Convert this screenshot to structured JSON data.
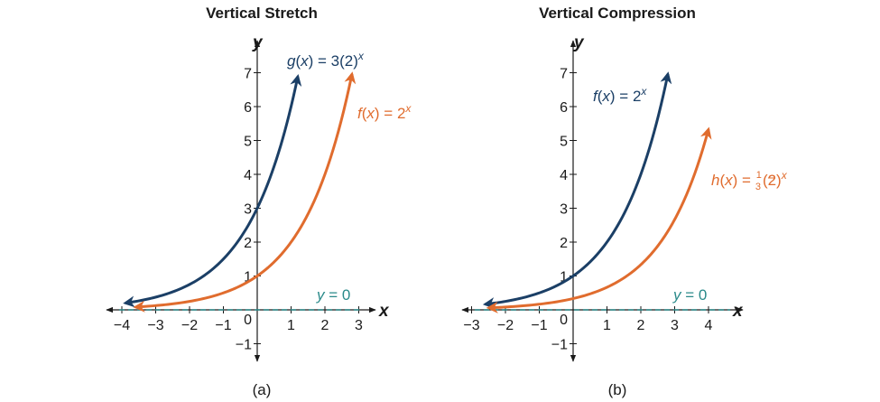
{
  "colors": {
    "blue": "#1b3f66",
    "orange": "#e06c2e",
    "teal": "#2a8a8a",
    "axis": "#1a1a1a"
  },
  "chart_data": [
    {
      "type": "line",
      "panel_label": "(a)",
      "title": "Vertical Stretch",
      "xlabel": "x",
      "ylabel": "y",
      "xlim": [
        -4,
        3
      ],
      "ylim": [
        -1,
        7
      ],
      "x_ticks": [
        "−4",
        "−3",
        "−2",
        "−1",
        "1",
        "2",
        "3"
      ],
      "y_ticks": [
        "−1",
        "1",
        "2",
        "3",
        "4",
        "5",
        "6",
        "7"
      ],
      "origin_label": "0",
      "series": [
        {
          "name": "g(x) = 3(2)^x",
          "label_parts": [
            "g",
            "(",
            "x",
            ") = 3(2)",
            "x"
          ],
          "coef": 3,
          "base": 2,
          "x_range": [
            -3.9,
            1.2
          ],
          "color": "#1b3f66"
        },
        {
          "name": "f(x) = 2^x",
          "label_parts": [
            "f",
            "(",
            "x",
            ") = 2",
            "x"
          ],
          "coef": 1,
          "base": 2,
          "x_range": [
            -3.6,
            2.8
          ],
          "color": "#e06c2e"
        }
      ],
      "asymptote": {
        "y": 0,
        "label_parts": [
          "y",
          " = 0"
        ],
        "color": "#2a8a8a"
      }
    },
    {
      "type": "line",
      "panel_label": "(b)",
      "title": "Vertical Compression",
      "xlabel": "x",
      "ylabel": "y",
      "xlim": [
        -3,
        4
      ],
      "ylim": [
        -1,
        7
      ],
      "x_ticks": [
        "−3",
        "−2",
        "−1",
        "1",
        "2",
        "3",
        "4"
      ],
      "y_ticks": [
        "−1",
        "1",
        "2",
        "3",
        "4",
        "5",
        "6",
        "7"
      ],
      "origin_label": "0",
      "series": [
        {
          "name": "f(x) = 2^x",
          "label_parts": [
            "f",
            "(",
            "x",
            ") = 2",
            "x"
          ],
          "coef": 1,
          "base": 2,
          "x_range": [
            -2.6,
            2.8
          ],
          "color": "#1b3f66"
        },
        {
          "name": "h(x) = (1/3)(2)^x",
          "label_parts": [
            "h",
            "(",
            "x",
            ") = ",
            "1",
            "3",
            "(2)",
            "x"
          ],
          "coef": 0.3333,
          "base": 2,
          "x_range": [
            -2.5,
            4.0
          ],
          "color": "#e06c2e"
        }
      ],
      "asymptote": {
        "y": 0,
        "label_parts": [
          "y",
          " = 0"
        ],
        "color": "#2a8a8a"
      }
    }
  ]
}
